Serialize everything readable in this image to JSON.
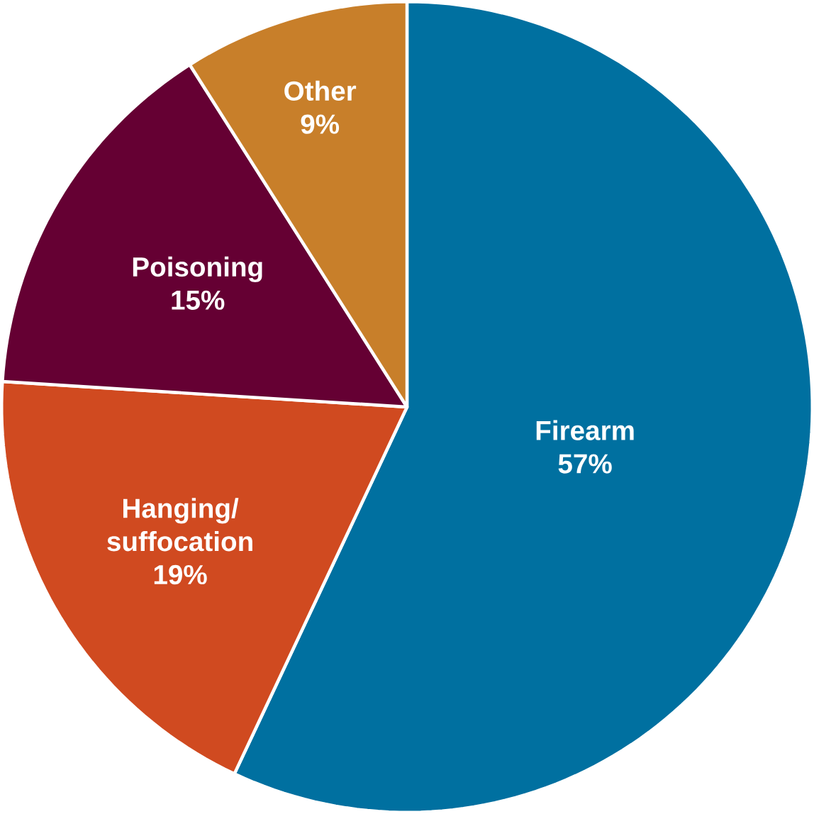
{
  "chart_data": {
    "type": "pie",
    "categories": [
      "Firearm",
      "Hanging/ suffocation",
      "Poisoning",
      "Other"
    ],
    "values": [
      57,
      19,
      15,
      9
    ],
    "value_labels": [
      "57%",
      "19%",
      "15%",
      "9%"
    ],
    "colors": [
      "#0070a0",
      "#d04a20",
      "#650033",
      "#c87f2a"
    ]
  }
}
